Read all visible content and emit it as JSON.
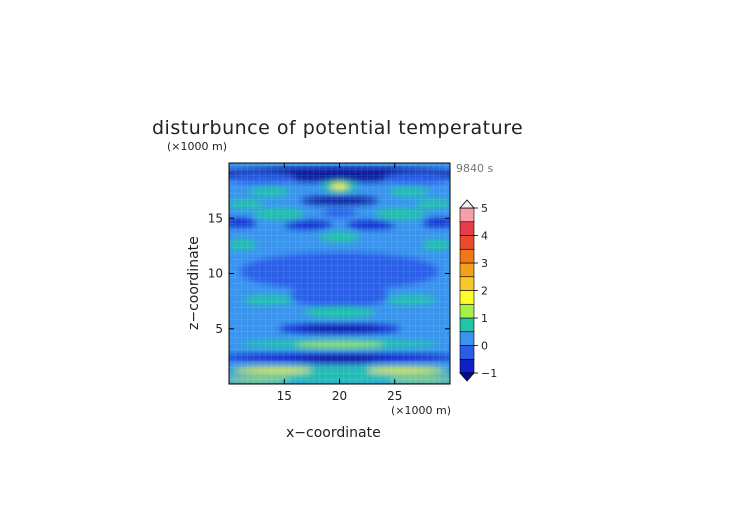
{
  "chart_data": {
    "type": "heatmap",
    "title": "disturbunce of potential temperature",
    "xlabel": "x−coordinate",
    "ylabel": "z−coordinate",
    "x_unit": "(×1000 m)",
    "y_unit": "(×1000 m)",
    "time_label": "9840 s",
    "xlim": [
      10,
      30
    ],
    "ylim": [
      0,
      20
    ],
    "x_ticks": [
      "15",
      "20",
      "25"
    ],
    "y_ticks": [
      "5",
      "10",
      "15"
    ],
    "x_tick_values": [
      15,
      20,
      25
    ],
    "y_tick_values": [
      5,
      10,
      15
    ],
    "colorbar": {
      "levels": [
        -1,
        -0.5,
        0,
        0.5,
        1,
        1.5,
        2,
        2.5,
        3,
        3.5,
        4,
        4.5,
        5
      ],
      "labels": [
        "5",
        "4",
        "3",
        "2",
        "1",
        "0",
        "−1"
      ],
      "label_values": [
        5,
        4,
        3,
        2,
        1,
        0,
        -1
      ],
      "colors": [
        "#1020c8",
        "#2a5ee6",
        "#3b94ec",
        "#22c4a6",
        "#a8f048",
        "#fcfc28",
        "#f8c828",
        "#f4a018",
        "#f07818",
        "#e84c28",
        "#e83c4a",
        "#f4a0a8"
      ],
      "under_color": "#0a0a90",
      "over_color": "#f8eeee"
    },
    "grid": true
  }
}
